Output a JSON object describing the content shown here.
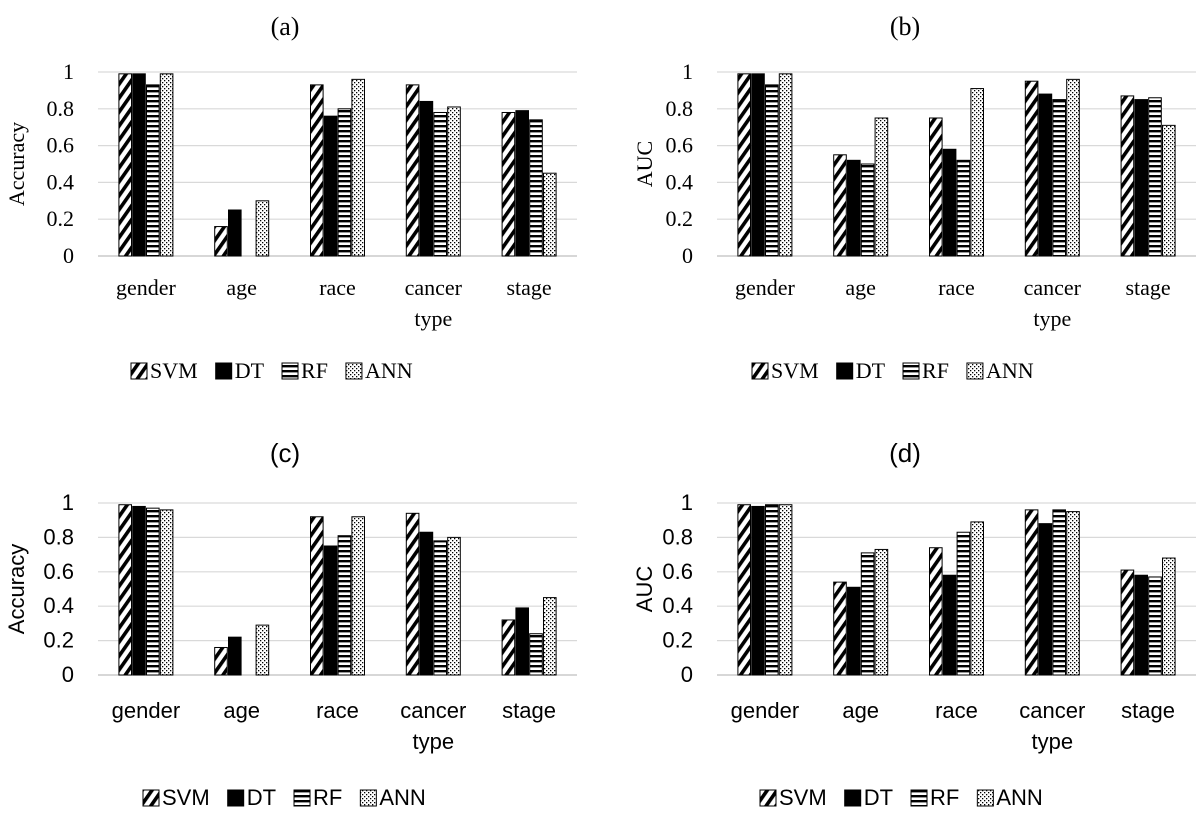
{
  "legend": [
    "SVM",
    "DT",
    "RF",
    "ANN"
  ],
  "chart_data": [
    {
      "type": "bar",
      "title": "(a)",
      "ylabel": "Accuracy",
      "ylim": [
        0,
        1
      ],
      "yticks": [
        "0",
        "0.2",
        "0.4",
        "0.6",
        "0.8",
        "1"
      ],
      "categories": [
        "gender",
        "age",
        "race",
        "cancer type",
        "stage"
      ],
      "category_lines": [
        [
          "gender"
        ],
        [
          "age"
        ],
        [
          "race"
        ],
        [
          "cancer",
          "type"
        ],
        [
          "stage"
        ]
      ],
      "series": [
        {
          "name": "SVM",
          "pattern": "diagonal-hatch",
          "values": [
            0.99,
            0.16,
            0.93,
            0.93,
            0.78
          ]
        },
        {
          "name": "DT",
          "pattern": "solid-black",
          "values": [
            0.99,
            0.25,
            0.76,
            0.84,
            0.79
          ]
        },
        {
          "name": "RF",
          "pattern": "horizontal-stripes",
          "values": [
            0.93,
            0.0,
            0.8,
            0.78,
            0.74
          ]
        },
        {
          "name": "ANN",
          "pattern": "dots",
          "values": [
            0.99,
            0.3,
            0.96,
            0.81,
            0.45
          ]
        }
      ],
      "grid": true,
      "legend_position": "bottom"
    },
    {
      "type": "bar",
      "title": "(b)",
      "ylabel": "AUC",
      "ylim": [
        0,
        1
      ],
      "yticks": [
        "0",
        "0.2",
        "0.4",
        "0.6",
        "0.8",
        "1"
      ],
      "categories": [
        "gender",
        "age",
        "race",
        "cancer type",
        "stage"
      ],
      "category_lines": [
        [
          "gender"
        ],
        [
          "age"
        ],
        [
          "race"
        ],
        [
          "cancer",
          "type"
        ],
        [
          "stage"
        ]
      ],
      "series": [
        {
          "name": "SVM",
          "pattern": "diagonal-hatch",
          "values": [
            0.99,
            0.55,
            0.75,
            0.95,
            0.87
          ]
        },
        {
          "name": "DT",
          "pattern": "solid-black",
          "values": [
            0.99,
            0.52,
            0.58,
            0.88,
            0.85
          ]
        },
        {
          "name": "RF",
          "pattern": "horizontal-stripes",
          "values": [
            0.93,
            0.5,
            0.52,
            0.85,
            0.86
          ]
        },
        {
          "name": "ANN",
          "pattern": "dots",
          "values": [
            0.99,
            0.75,
            0.91,
            0.96,
            0.71
          ]
        }
      ],
      "grid": true,
      "legend_position": "bottom"
    },
    {
      "type": "bar",
      "title": "(c)",
      "ylabel": "Accuracy",
      "ylim": [
        0,
        1
      ],
      "yticks": [
        "0",
        "0.2",
        "0.4",
        "0.6",
        "0.8",
        "1"
      ],
      "categories": [
        "gender",
        "age",
        "race",
        "cancer type",
        "stage"
      ],
      "category_lines": [
        [
          "gender"
        ],
        [
          "age"
        ],
        [
          "race"
        ],
        [
          "cancer",
          "type"
        ],
        [
          "stage"
        ]
      ],
      "series": [
        {
          "name": "SVM",
          "pattern": "diagonal-hatch",
          "values": [
            0.99,
            0.16,
            0.92,
            0.94,
            0.32
          ]
        },
        {
          "name": "DT",
          "pattern": "solid-black",
          "values": [
            0.98,
            0.22,
            0.75,
            0.83,
            0.39
          ]
        },
        {
          "name": "RF",
          "pattern": "horizontal-stripes",
          "values": [
            0.97,
            0.0,
            0.81,
            0.78,
            0.24
          ]
        },
        {
          "name": "ANN",
          "pattern": "dots",
          "values": [
            0.96,
            0.29,
            0.92,
            0.8,
            0.45
          ]
        }
      ],
      "grid": true,
      "legend_position": "bottom"
    },
    {
      "type": "bar",
      "title": "(d)",
      "ylabel": "AUC",
      "ylim": [
        0,
        1
      ],
      "yticks": [
        "0",
        "0.2",
        "0.4",
        "0.6",
        "0.8",
        "1"
      ],
      "categories": [
        "gender",
        "age",
        "race",
        "cancer type",
        "stage"
      ],
      "category_lines": [
        [
          "gender"
        ],
        [
          "age"
        ],
        [
          "race"
        ],
        [
          "cancer",
          "type"
        ],
        [
          "stage"
        ]
      ],
      "series": [
        {
          "name": "SVM",
          "pattern": "diagonal-hatch",
          "values": [
            0.99,
            0.54,
            0.74,
            0.96,
            0.61
          ]
        },
        {
          "name": "DT",
          "pattern": "solid-black",
          "values": [
            0.98,
            0.51,
            0.58,
            0.88,
            0.58
          ]
        },
        {
          "name": "RF",
          "pattern": "horizontal-stripes",
          "values": [
            0.99,
            0.71,
            0.83,
            0.96,
            0.57
          ]
        },
        {
          "name": "ANN",
          "pattern": "dots",
          "values": [
            0.99,
            0.73,
            0.89,
            0.95,
            0.68
          ]
        }
      ],
      "grid": true,
      "legend_position": "bottom"
    }
  ]
}
